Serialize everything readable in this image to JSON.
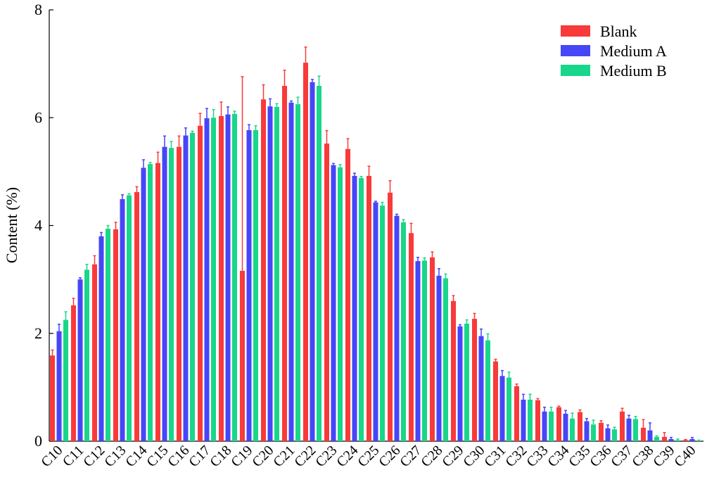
{
  "chart_data": {
    "type": "bar",
    "y_label": "Content (%)",
    "categories": [
      "C10",
      "C11",
      "C12",
      "C13",
      "C14",
      "C15",
      "C16",
      "C17",
      "C18",
      "C19",
      "C20",
      "C21",
      "C22",
      "C23",
      "C24",
      "C25",
      "C26",
      "C27",
      "C28",
      "C29",
      "C30",
      "C31",
      "C32",
      "C33",
      "C34",
      "C35",
      "C36",
      "C37",
      "C38",
      "C39",
      "C40"
    ],
    "series": [
      {
        "name": "Blank",
        "color": "#f83a3a",
        "values": [
          1.59,
          2.52,
          3.28,
          3.93,
          4.62,
          5.16,
          5.46,
          5.85,
          6.03,
          3.16,
          6.34,
          6.59,
          7.02,
          5.52,
          5.42,
          4.92,
          4.61,
          3.86,
          3.41,
          2.6,
          2.27,
          1.48,
          1.02,
          0.76,
          0.63,
          0.54,
          0.34,
          0.55,
          0.25,
          0.08,
          0.02
        ],
        "errors": [
          0.1,
          0.13,
          0.16,
          0.13,
          0.1,
          0.2,
          0.2,
          0.23,
          0.26,
          3.6,
          0.27,
          0.29,
          0.29,
          0.24,
          0.19,
          0.18,
          0.22,
          0.18,
          0.1,
          0.1,
          0.1,
          0.04,
          0.04,
          0.03,
          0.02,
          0.04,
          0.04,
          0.06,
          0.15,
          0.08,
          0.01
        ]
      },
      {
        "name": "Medium A",
        "color": "#4646f8",
        "values": [
          2.04,
          3.0,
          3.8,
          4.49,
          5.07,
          5.46,
          5.67,
          5.99,
          6.06,
          5.77,
          6.21,
          6.28,
          6.66,
          5.12,
          4.92,
          4.43,
          4.18,
          3.34,
          3.07,
          2.13,
          1.95,
          1.21,
          0.77,
          0.55,
          0.51,
          0.37,
          0.24,
          0.42,
          0.2,
          0.04,
          0.04
        ],
        "errors": [
          0.13,
          0.03,
          0.07,
          0.08,
          0.15,
          0.2,
          0.14,
          0.18,
          0.14,
          0.1,
          0.14,
          0.03,
          0.05,
          0.03,
          0.05,
          0.02,
          0.03,
          0.07,
          0.13,
          0.03,
          0.13,
          0.1,
          0.1,
          0.08,
          0.06,
          0.05,
          0.06,
          0.06,
          0.14,
          0.03,
          0.03
        ]
      },
      {
        "name": "Medium B",
        "color": "#18d68a",
        "values": [
          2.25,
          3.18,
          3.94,
          4.56,
          5.14,
          5.44,
          5.72,
          6.0,
          6.07,
          5.77,
          6.2,
          6.25,
          6.59,
          5.08,
          4.88,
          4.37,
          4.06,
          3.35,
          3.02,
          2.18,
          1.87,
          1.18,
          0.77,
          0.55,
          0.42,
          0.31,
          0.22,
          0.41,
          0.08,
          0.02,
          0.01
        ],
        "errors": [
          0.15,
          0.1,
          0.06,
          0.03,
          0.03,
          0.12,
          0.03,
          0.15,
          0.05,
          0.08,
          0.06,
          0.13,
          0.18,
          0.05,
          0.03,
          0.06,
          0.05,
          0.05,
          0.08,
          0.07,
          0.12,
          0.1,
          0.1,
          0.08,
          0.1,
          0.08,
          0.04,
          0.05,
          0.02,
          0.02,
          0.01
        ]
      }
    ],
    "ylim": [
      0,
      8
    ],
    "yticks": [
      0,
      2,
      4,
      6,
      8
    ],
    "legend": "top-right"
  }
}
